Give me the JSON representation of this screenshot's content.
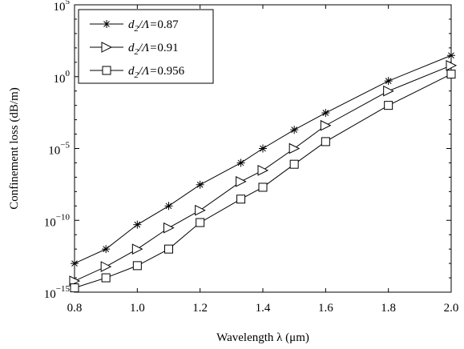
{
  "chart_data": {
    "type": "line",
    "xlabel": "Wavelength λ (μm)",
    "ylabel": "Confinement loss (dB/m)",
    "xlim": [
      0.8,
      2.0
    ],
    "yscale": "log",
    "ylim_exponent": [
      -15,
      5
    ],
    "x_ticks": [
      0.8,
      1.0,
      1.2,
      1.4,
      1.6,
      1.8,
      2.0
    ],
    "x_tick_labels": [
      "0.8",
      "1.0",
      "1.2",
      "1.4",
      "1.6",
      "1.8",
      "2.0"
    ],
    "y_ticks": [
      1e-15,
      1e-10,
      1e-05,
      1,
      100000.0
    ],
    "y_tick_labels": [
      {
        "base": "10",
        "exp": "−15"
      },
      {
        "base": "10",
        "exp": "−10"
      },
      {
        "base": "10",
        "exp": "−5"
      },
      {
        "base": "10",
        "exp": "0"
      },
      {
        "base": "10",
        "exp": "5"
      }
    ],
    "grid": false,
    "legend_position": "top-left",
    "x": [
      0.8,
      0.9,
      1.0,
      1.1,
      1.2,
      1.33,
      1.4,
      1.5,
      1.6,
      1.8,
      2.0
    ],
    "series": [
      {
        "legend_prefix": "d",
        "legend_sub": "2",
        "legend_mid": "/Λ=",
        "legend_val": "0.87",
        "marker": "asterisk",
        "values": [
          1e-13,
          1e-12,
          5e-11,
          1e-09,
          3e-08,
          1e-06,
          1e-05,
          0.0002,
          0.003,
          0.5,
          30
        ]
      },
      {
        "legend_prefix": "d",
        "legend_sub": "2",
        "legend_mid": "/Λ=",
        "legend_val": "0.91",
        "marker": "triangle-right",
        "values": [
          6e-15,
          6e-14,
          1e-12,
          3e-11,
          5e-10,
          5e-08,
          3e-07,
          1e-05,
          0.0004,
          0.1,
          6
        ]
      },
      {
        "legend_prefix": "d",
        "legend_sub": "2",
        "legend_mid": "/Λ=",
        "legend_val": "0.956",
        "marker": "square",
        "values": [
          2e-15,
          1e-14,
          7e-14,
          1e-12,
          7e-11,
          3e-09,
          2e-08,
          8e-07,
          3e-05,
          0.01,
          1.5
        ]
      }
    ],
    "colors": {
      "line": "#000000",
      "background": "#ffffff"
    }
  }
}
